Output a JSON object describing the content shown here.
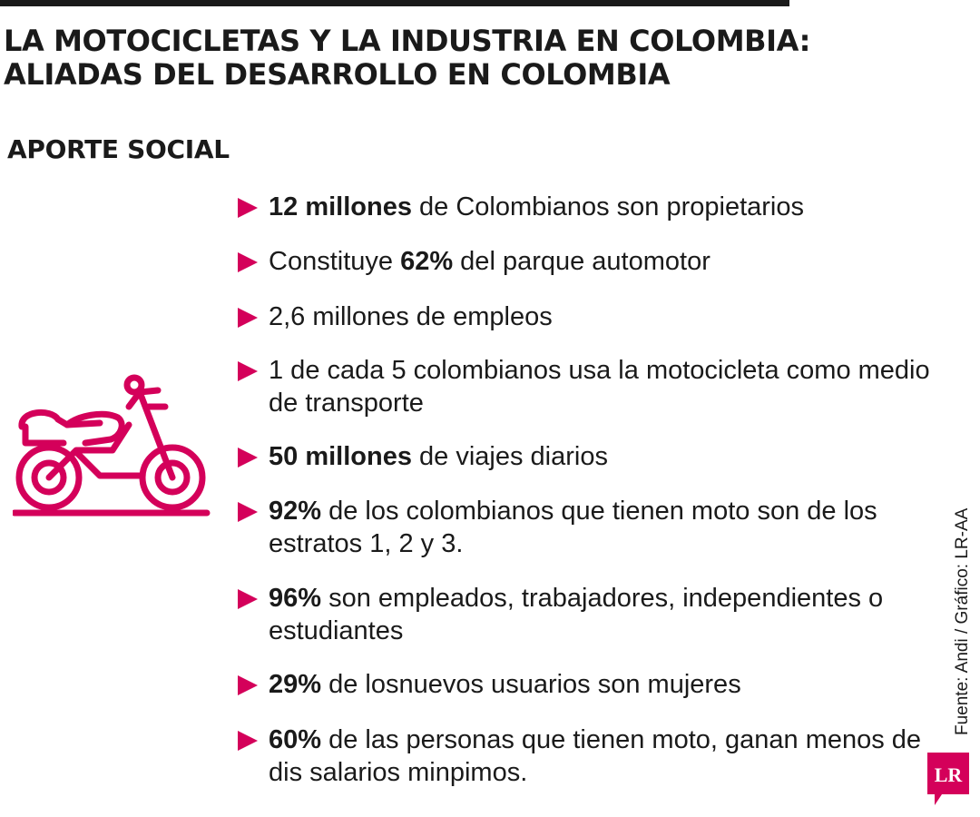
{
  "header": {
    "title_line1": "LA MOTOCICLETAS Y LA INDUSTRIA EN COLOMBIA:",
    "title_line2": "ALIADAS DEL DESARROLLO EN COLOMBIA"
  },
  "section_title": "APORTE SOCIAL",
  "icons": {
    "illustration": "motorcycle-icon",
    "bullet": "triangle-bullet-icon",
    "logo": "lr-logo"
  },
  "colors": {
    "accent": "#d4005a",
    "text": "#1a1a1a",
    "background": "#ffffff"
  },
  "items": [
    {
      "bold": "12 millones",
      "rest": " de Colombianos son propietarios"
    },
    {
      "pre": "Constituye ",
      "bold": "62%",
      "rest": " del parque automotor"
    },
    {
      "rest": "2,6 millones de empleos"
    },
    {
      "rest": "1 de cada 5 colombianos usa la motocicleta como medio de transporte"
    },
    {
      "bold": "50 millones",
      "rest": " de viajes diarios"
    },
    {
      "bold": "92%",
      "rest": " de los colombianos que tienen moto son de los estratos 1, 2 y 3."
    },
    {
      "bold": "96%",
      "rest": " son empleados, trabajadores, independientes o estudiantes"
    },
    {
      "bold": "29%",
      "rest": " de losnuevos usuarios son mujeres"
    },
    {
      "bold": "60%",
      "rest": " de las personas que tienen moto, ganan menos de dis salarios minpimos."
    }
  ],
  "source": "Fuente: Andi / Gráfico: LR-AA",
  "logo_text": "LR"
}
